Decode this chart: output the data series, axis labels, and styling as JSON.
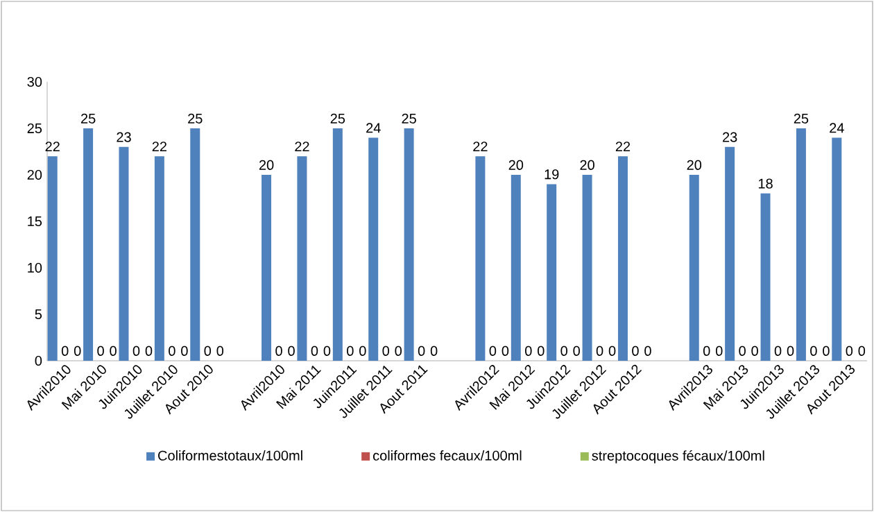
{
  "chart_data": {
    "type": "bar",
    "categories": [
      "Avril2010",
      "Mai 2010",
      "Juin2010",
      "Juillet 2010",
      "Aout 2010",
      null,
      "Avril2010",
      "Mai 2011",
      "Juin2011",
      "Juillet 2011",
      "Aout 2011",
      null,
      "Avril2012",
      "Mai 2012",
      "Juin2012",
      "Juillet 2012",
      "Aout 2012",
      null,
      "Avril2013",
      "Mai 2013",
      "Juin2013",
      "Juillet 2013",
      "Aout 2013"
    ],
    "series": [
      {
        "name": "Coliformestotaux/100ml",
        "color": "#4f81bd",
        "values": [
          22,
          25,
          23,
          22,
          25,
          null,
          20,
          22,
          25,
          24,
          25,
          null,
          22,
          20,
          19,
          20,
          22,
          null,
          20,
          23,
          18,
          25,
          24
        ]
      },
      {
        "name": "coliformes fecaux/100ml",
        "color": "#c0504d",
        "values": [
          0,
          0,
          0,
          0,
          0,
          null,
          0,
          0,
          0,
          0,
          0,
          null,
          0,
          0,
          0,
          0,
          0,
          null,
          0,
          0,
          0,
          0,
          0
        ]
      },
      {
        "name": "streptocoques fécaux/100ml",
        "color": "#9bbb59",
        "values": [
          0,
          0,
          0,
          0,
          0,
          null,
          0,
          0,
          0,
          0,
          0,
          null,
          0,
          0,
          0,
          0,
          0,
          null,
          0,
          0,
          0,
          0,
          0
        ]
      }
    ],
    "ylim": [
      0,
      30
    ],
    "yticks": [
      0,
      5,
      10,
      15,
      20,
      25,
      30
    ],
    "data_labels": true,
    "legend": "bottom",
    "grid": false
  }
}
